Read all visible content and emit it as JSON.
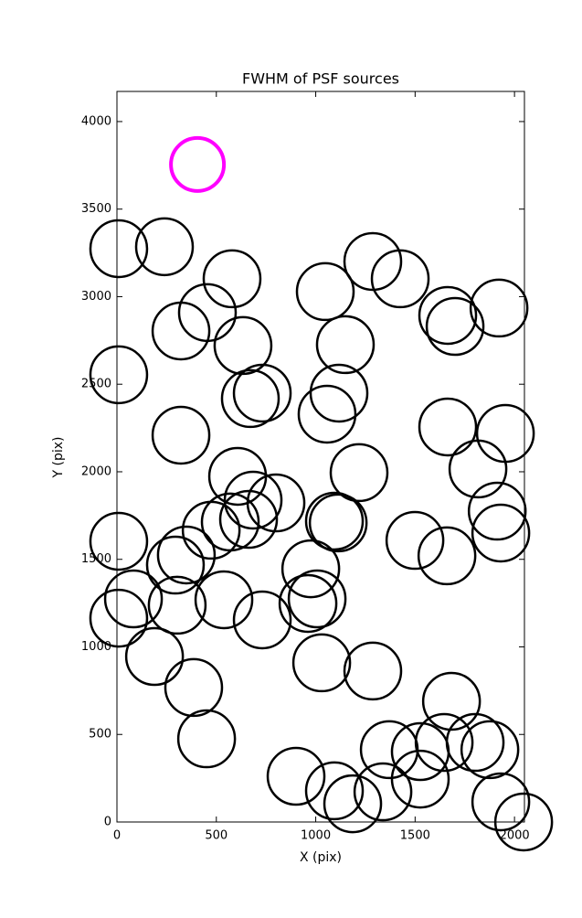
{
  "chart_data": {
    "type": "scatter",
    "title": "FWHM of PSF sources",
    "x_label": "X (pix)",
    "y_label": "Y (pix)",
    "xlim": [
      0,
      2050
    ],
    "ylim": [
      0,
      4172
    ],
    "xticks": [
      0,
      500,
      1000,
      1500,
      2000
    ],
    "yticks": [
      0,
      500,
      1000,
      1500,
      2000,
      2500,
      3000,
      3500,
      4000
    ],
    "grid": false,
    "series": [
      {
        "color": "#000000",
        "x": [
          9,
          239,
          579,
          455,
          322,
          1048,
          1287,
          1425,
          1664,
          1701,
          1922,
          634,
          1149,
          9,
          671,
          731,
          1117,
          1057,
          322,
          1664,
          1954,
          1816,
          1218,
          607,
          685,
          800,
          662,
          570,
          474,
          1913,
          1931,
          1094,
          1113,
          1499,
          1660,
          9,
          349,
          294,
          975,
          83,
          9,
          303,
          538,
          731,
          961,
          1007,
          189,
          1030,
          1287,
          386,
          451,
          1683,
          1370,
          1526,
          1646,
          1802,
          1876,
          901,
          1094,
          1186,
          1338,
          1526,
          1931,
          2046
        ],
        "values": [
          3274,
          3285,
          3102,
          2909,
          2804,
          3029,
          3201,
          3102,
          2893,
          2830,
          2935,
          2721,
          2726,
          2554,
          2418,
          2449,
          2449,
          2329,
          2209,
          2256,
          2219,
          2016,
          1995,
          1974,
          1838,
          1822,
          1728,
          1713,
          1666,
          1775,
          1650,
          1718,
          1708,
          1608,
          1520,
          1603,
          1525,
          1467,
          1446,
          1274,
          1164,
          1238,
          1269,
          1154,
          1248,
          1274,
          945,
          909,
          862,
          768,
          475,
          689,
          413,
          402,
          454,
          454,
          413,
          261,
          178,
          104,
          172,
          245,
          115,
          0
        ]
      },
      {
        "color": "#ff00ff",
        "x": [
          405
        ],
        "values": [
          3755
        ]
      }
    ]
  }
}
